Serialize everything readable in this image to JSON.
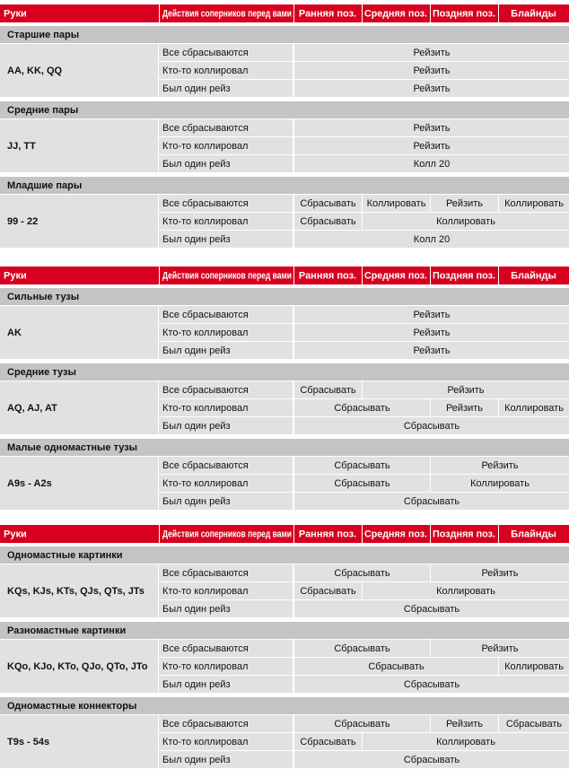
{
  "tables": [
    {
      "header": [
        "Руки",
        "Действия соперников перед вами",
        "Ранняя поз.",
        "Средняя поз.",
        "Поздняя поз.",
        "Блайнды"
      ],
      "groups": [
        {
          "title": "Старшие пары",
          "hand": "AA, KK, QQ",
          "rows": [
            {
              "action": "Все сбрасываются",
              "cells": [
                "Рейзить",
                null,
                null,
                null
              ]
            },
            {
              "action": "Кто-то коллировал",
              "cells": [
                "Рейзить",
                null,
                null,
                null
              ]
            },
            {
              "action": "Был один рейз",
              "cells": [
                "Рейзить",
                null,
                null,
                null
              ]
            }
          ]
        },
        {
          "title": "Средние пары",
          "hand": "JJ, TT",
          "rows": [
            {
              "action": "Все сбрасываются",
              "cells": [
                "Рейзить",
                null,
                null,
                null
              ]
            },
            {
              "action": "Кто-то коллировал",
              "cells": [
                "Рейзить",
                null,
                null,
                null
              ]
            },
            {
              "action": "Был один рейз",
              "cells": [
                "Колл  20",
                null,
                null,
                null
              ]
            }
          ]
        },
        {
          "title": "Младшие пары",
          "hand": "99 - 22",
          "rows": [
            {
              "action": "Все сбрасываются",
              "cells": [
                "Сбрасывать",
                "Коллировать",
                "Рейзить",
                "Коллировать"
              ]
            },
            {
              "action": "Кто-то коллировал",
              "cells": [
                "Сбрасывать",
                "Коллировать",
                null,
                null
              ]
            },
            {
              "action": "Был один рейз",
              "cells": [
                "Колл  20",
                null,
                null,
                null
              ]
            }
          ]
        }
      ]
    },
    {
      "header": [
        "Руки",
        "Действия соперников перед вами",
        "Ранняя поз.",
        "Средняя поз.",
        "Поздняя поз.",
        "Блайнды"
      ],
      "groups": [
        {
          "title": "Сильные тузы",
          "hand": "AK",
          "rows": [
            {
              "action": "Все сбрасываются",
              "cells": [
                "Рейзить",
                null,
                null,
                null
              ]
            },
            {
              "action": "Кто-то коллировал",
              "cells": [
                "Рейзить",
                null,
                null,
                null
              ]
            },
            {
              "action": "Был один рейз",
              "cells": [
                "Рейзить",
                null,
                null,
                null
              ]
            }
          ]
        },
        {
          "title": "Средние тузы",
          "hand": "AQ, AJ, AT",
          "rows": [
            {
              "action": "Все сбрасываются",
              "cells": [
                "Сбрасывать",
                "Рейзить",
                null,
                null
              ]
            },
            {
              "action": "Кто-то коллировал",
              "cells": [
                "Сбрасывать",
                null,
                "Рейзить",
                "Коллировать"
              ]
            },
            {
              "action": "Был один рейз",
              "cells": [
                "Сбрасывать",
                null,
                null,
                null
              ]
            }
          ]
        },
        {
          "title": "Малые одномастные тузы",
          "hand": "A9s - A2s",
          "rows": [
            {
              "action": "Все сбрасываются",
              "cells": [
                "Сбрасывать",
                null,
                "Рейзить",
                null
              ]
            },
            {
              "action": "Кто-то коллировал",
              "cells": [
                "Сбрасывать",
                null,
                "Коллировать",
                null
              ]
            },
            {
              "action": "Был один рейз",
              "cells": [
                "Сбрасывать",
                null,
                null,
                null
              ]
            }
          ]
        }
      ]
    },
    {
      "header": [
        "Руки",
        "Действия соперников перед вами",
        "Ранняя поз.",
        "Средняя поз.",
        "Поздняя поз.",
        "Блайнды"
      ],
      "groups": [
        {
          "title": "Одномастные картинки",
          "hand": "KQs, KJs, KTs, QJs, QTs, JTs",
          "rows": [
            {
              "action": "Все сбрасываются",
              "cells": [
                "Сбрасывать",
                null,
                "Рейзить",
                null
              ]
            },
            {
              "action": "Кто-то коллировал",
              "cells": [
                "Сбрасывать",
                "Коллировать",
                null,
                null
              ]
            },
            {
              "action": "Был один рейз",
              "cells": [
                "Сбрасывать",
                null,
                null,
                null
              ]
            }
          ]
        },
        {
          "title": "Разномастные картинки",
          "hand": "KQo, KJo, KTo, QJo, QTo, JTo",
          "rows": [
            {
              "action": "Все сбрасываются",
              "cells": [
                "Сбрасывать",
                null,
                "Рейзить",
                null
              ]
            },
            {
              "action": "Кто-то коллировал",
              "cells": [
                "Сбрасывать",
                null,
                null,
                "Коллировать"
              ]
            },
            {
              "action": "Был один рейз",
              "cells": [
                "Сбрасывать",
                null,
                null,
                null
              ]
            }
          ]
        },
        {
          "title": "Одномастные коннекторы",
          "hand": "T9s - 54s",
          "rows": [
            {
              "action": "Все сбрасываются",
              "cells": [
                "Сбрасывать",
                null,
                "Рейзить",
                "Сбрасывать"
              ]
            },
            {
              "action": "Кто-то коллировал",
              "cells": [
                "Сбрасывать",
                "Коллировать",
                null,
                null
              ]
            },
            {
              "action": "Был один рейз",
              "cells": [
                "Сбрасывать",
                null,
                null,
                null
              ]
            }
          ]
        }
      ]
    }
  ]
}
